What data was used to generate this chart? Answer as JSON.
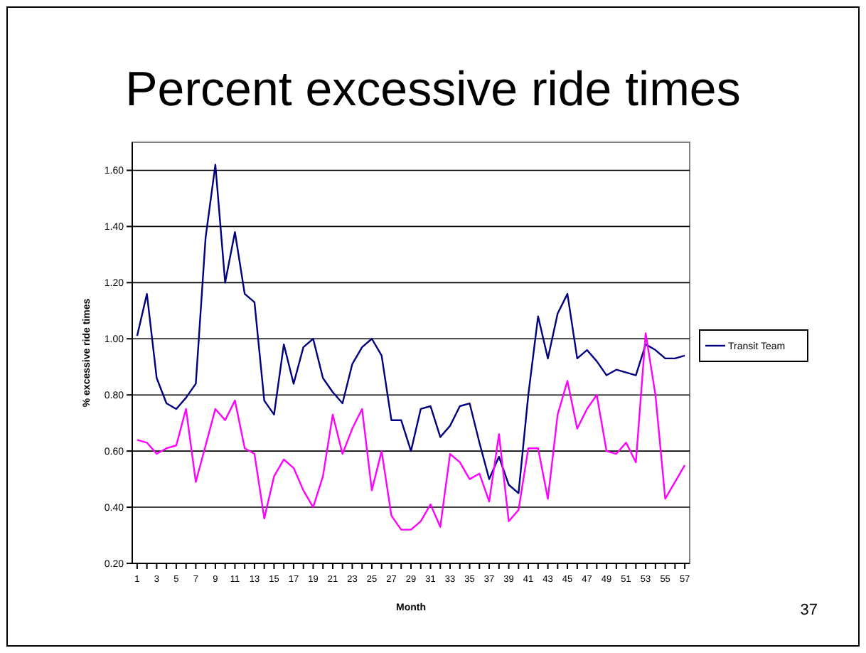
{
  "chart_data": {
    "type": "line",
    "title": "Percent excessive ride times",
    "xlabel": "Month",
    "ylabel": "% excessive ride times",
    "x": [
      1,
      2,
      3,
      4,
      5,
      6,
      7,
      8,
      9,
      10,
      11,
      12,
      13,
      14,
      15,
      16,
      17,
      18,
      19,
      20,
      21,
      22,
      23,
      24,
      25,
      26,
      27,
      28,
      29,
      30,
      31,
      32,
      33,
      34,
      35,
      36,
      37,
      38,
      39,
      40,
      41,
      42,
      43,
      44,
      45,
      46,
      47,
      48,
      49,
      50,
      51,
      52,
      53,
      54,
      55,
      56,
      57
    ],
    "xlim": [
      0.5,
      57.5
    ],
    "xticks": [
      1,
      {
        "value": 2,
        "label": null
      },
      3,
      {
        "value": 4,
        "label": null
      },
      5,
      {
        "value": 6,
        "label": null
      },
      7,
      {
        "value": 8,
        "label": null
      },
      9,
      {
        "value": 10,
        "label": null
      },
      11,
      {
        "value": 12,
        "label": null
      },
      13,
      {
        "value": 14,
        "label": null
      },
      15,
      {
        "value": 16,
        "label": null
      },
      17,
      {
        "value": 18,
        "label": null
      },
      19,
      {
        "value": 20,
        "label": null
      },
      21,
      {
        "value": 22,
        "label": null
      },
      23,
      {
        "value": 24,
        "label": null
      },
      25,
      {
        "value": 26,
        "label": null
      },
      27,
      {
        "value": 28,
        "label": null
      },
      29,
      {
        "value": 30,
        "label": null
      },
      31,
      {
        "value": 32,
        "label": null
      },
      33,
      {
        "value": 34,
        "label": null
      },
      35,
      {
        "value": 36,
        "label": null
      },
      37,
      {
        "value": 38,
        "label": null
      },
      39,
      {
        "value": 40,
        "label": null
      },
      41,
      {
        "value": 42,
        "label": null
      },
      43,
      {
        "value": 44,
        "label": null
      },
      45,
      {
        "value": 46,
        "label": null
      },
      47,
      {
        "value": 48,
        "label": null
      },
      49,
      {
        "value": 50,
        "label": null
      },
      51,
      {
        "value": 52,
        "label": null
      },
      53,
      {
        "value": 54,
        "label": null
      },
      55,
      {
        "value": 56,
        "label": null
      },
      57
    ],
    "series": [
      {
        "name": "Transit Team",
        "color": "#000080",
        "values": [
          1.01,
          1.16,
          0.86,
          0.77,
          0.75,
          0.79,
          0.84,
          1.36,
          1.62,
          1.2,
          1.38,
          1.16,
          1.13,
          0.78,
          0.73,
          0.98,
          0.84,
          0.97,
          1.0,
          0.86,
          0.81,
          0.77,
          0.91,
          0.97,
          1.0,
          0.94,
          0.71,
          0.71,
          0.6,
          0.75,
          0.76,
          0.65,
          0.69,
          0.76,
          0.77,
          0.63,
          0.5,
          0.58,
          0.48,
          0.45,
          0.8,
          1.08,
          0.93,
          1.09,
          1.16,
          0.93,
          0.96,
          0.92,
          0.87,
          0.89,
          0.88,
          0.87,
          0.98,
          0.96,
          0.93,
          0.93,
          0.94
        ]
      },
      {
        "color": "#ff00ff",
        "values": [
          0.64,
          0.63,
          0.59,
          0.61,
          0.62,
          0.75,
          0.49,
          0.62,
          0.75,
          0.71,
          0.78,
          0.61,
          0.59,
          0.36,
          0.51,
          0.57,
          0.54,
          0.46,
          0.4,
          0.51,
          0.73,
          0.59,
          0.68,
          0.75,
          0.46,
          0.6,
          0.37,
          0.32,
          0.32,
          0.35,
          0.41,
          0.33,
          0.59,
          0.56,
          0.5,
          0.52,
          0.42,
          0.66,
          0.35,
          0.39,
          0.61,
          0.61,
          0.43,
          0.73,
          0.85,
          0.68,
          0.75,
          0.8,
          0.6,
          0.59,
          0.63,
          0.56,
          1.02,
          0.8,
          0.43,
          0.49,
          0.55
        ]
      }
    ],
    "ylim": [
      0.2,
      1.7
    ],
    "yticks": [
      {
        "value": 0.2,
        "label": "0.20"
      },
      {
        "value": 0.4,
        "label": "0.40"
      },
      {
        "value": 0.6,
        "label": "0.60"
      },
      {
        "value": 0.8,
        "label": "0.80"
      },
      {
        "value": 1.0,
        "label": "1.00"
      },
      {
        "value": 1.2,
        "label": "1.20"
      },
      {
        "value": 1.4,
        "label": "1.40"
      },
      {
        "value": 1.6,
        "label": "1.60"
      }
    ],
    "grid": "y",
    "legend": "right",
    "marker": "none",
    "line_style": "solid",
    "annotations": [
      "37"
    ]
  }
}
